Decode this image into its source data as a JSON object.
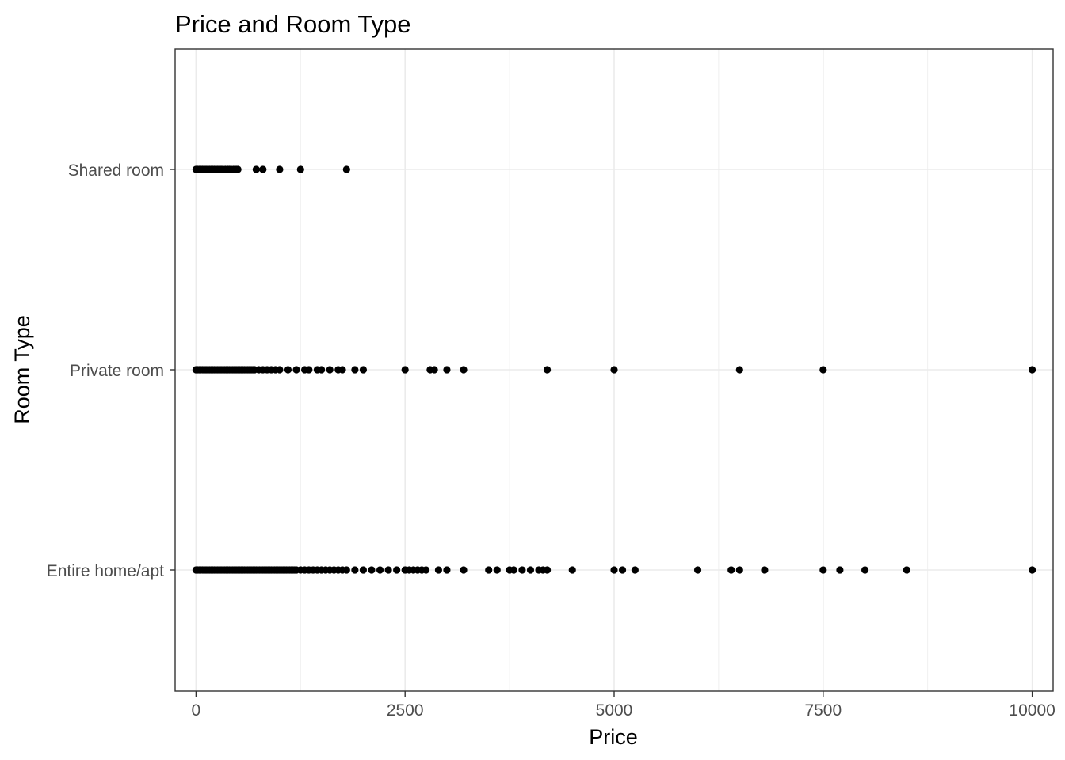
{
  "chart_data": {
    "type": "scatter",
    "title": "Price and Room Type",
    "xlabel": "Price",
    "ylabel": "Room Type",
    "xlim": [
      -250,
      10250
    ],
    "x_ticks": [
      0,
      2500,
      5000,
      7500,
      10000
    ],
    "x_tick_labels": [
      "0",
      "2500",
      "5000",
      "7500",
      "10000"
    ],
    "categories": [
      "Entire home/apt",
      "Private room",
      "Shared room"
    ],
    "grid": true,
    "legend": "none",
    "point_color": "#000000",
    "series": [
      {
        "category": "Shared room",
        "x": [
          0,
          20,
          40,
          60,
          80,
          100,
          120,
          140,
          160,
          180,
          200,
          220,
          240,
          260,
          280,
          300,
          320,
          350,
          380,
          400,
          420,
          450,
          480,
          500,
          720,
          800,
          1000,
          1250,
          1800
        ]
      },
      {
        "category": "Private room",
        "x": [
          0,
          20,
          40,
          60,
          80,
          100,
          120,
          140,
          160,
          180,
          200,
          220,
          240,
          260,
          280,
          300,
          320,
          340,
          360,
          380,
          400,
          420,
          440,
          460,
          480,
          500,
          520,
          540,
          560,
          580,
          600,
          620,
          640,
          660,
          680,
          700,
          750,
          800,
          850,
          900,
          950,
          1000,
          1100,
          1200,
          1300,
          1350,
          1450,
          1500,
          1600,
          1700,
          1750,
          1900,
          2000,
          2500,
          2800,
          2850,
          3000,
          3200,
          4200,
          5000,
          6500,
          7500,
          10000
        ]
      },
      {
        "category": "Entire home/apt",
        "x": [
          0,
          20,
          40,
          60,
          80,
          100,
          120,
          140,
          160,
          180,
          200,
          220,
          240,
          260,
          280,
          300,
          320,
          340,
          360,
          380,
          400,
          420,
          440,
          460,
          480,
          500,
          520,
          540,
          560,
          580,
          600,
          620,
          640,
          660,
          680,
          700,
          720,
          740,
          760,
          780,
          800,
          820,
          840,
          860,
          880,
          900,
          920,
          940,
          960,
          980,
          1000,
          1020,
          1040,
          1060,
          1080,
          1100,
          1120,
          1140,
          1160,
          1180,
          1200,
          1250,
          1300,
          1350,
          1400,
          1450,
          1500,
          1550,
          1600,
          1650,
          1700,
          1750,
          1800,
          1900,
          2000,
          2100,
          2200,
          2300,
          2400,
          2500,
          2550,
          2600,
          2650,
          2700,
          2750,
          2900,
          3000,
          3200,
          3500,
          3600,
          3750,
          3800,
          3900,
          4000,
          4100,
          4150,
          4200,
          4500,
          5000,
          5100,
          5250,
          6000,
          6400,
          6500,
          6800,
          7500,
          7700,
          8000,
          8500,
          10000
        ]
      }
    ]
  }
}
